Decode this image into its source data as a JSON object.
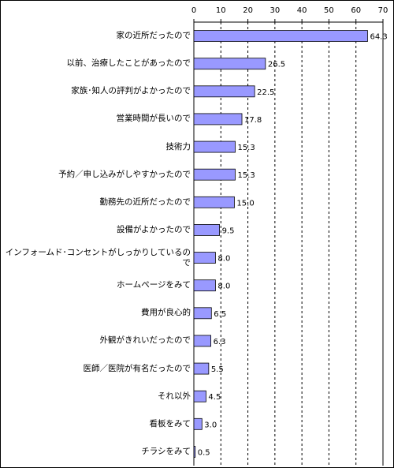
{
  "chart_data": {
    "type": "barh",
    "categories": [
      "家の近所だったので",
      "以前、治療したことがあったので",
      "家族･知人の評判がよかったので",
      "営業時間が長いので",
      "技術力",
      "予約／申し込みがしやすかったので",
      "勤務先の近所だったので",
      "設備がよかったので",
      "インフォームド･コンセントがしっかりしているので",
      "ホームページをみて",
      "費用が良心的",
      "外観がきれいだったので",
      "医師／医院が有名だったので",
      "それ以外",
      "看板をみて",
      "チラシをみて"
    ],
    "values": [
      64.3,
      26.5,
      22.5,
      17.8,
      15.3,
      15.3,
      15.0,
      9.5,
      8.0,
      8.0,
      6.5,
      6.3,
      5.5,
      4.5,
      3.0,
      0.5
    ],
    "value_labels": [
      "64.3",
      "26.5",
      "22.5",
      "17.8",
      "15.3",
      "15.3",
      "15.0",
      "9.5",
      "8.0",
      "8.0",
      "6.5",
      "6.3",
      "5.5",
      "4.5",
      "3.0",
      "0.5"
    ],
    "color": "#9999ff",
    "xlim": [
      0,
      70
    ],
    "xticks": [
      0,
      10,
      20,
      30,
      40,
      50,
      60,
      70
    ],
    "grid": true
  }
}
